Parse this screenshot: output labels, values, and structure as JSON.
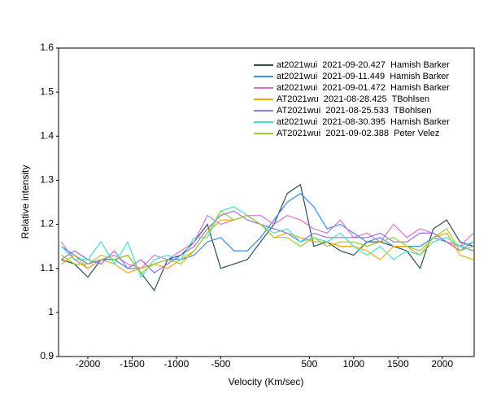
{
  "chart_data": {
    "type": "line",
    "x_label": "Velocity (Km/sec)",
    "y_label": "Relative intensity",
    "x": [
      -2300,
      -2150,
      -2000,
      -1850,
      -1700,
      -1550,
      -1400,
      -1250,
      -1100,
      -950,
      -800,
      -650,
      -500,
      -350,
      -200,
      -50,
      100,
      250,
      400,
      550,
      700,
      850,
      1000,
      1150,
      1300,
      1450,
      1600,
      1750,
      1900,
      2050,
      2200,
      2350
    ],
    "series": [
      {
        "name": "at2021wui  2021-09-20.427  Hamish Barker",
        "color": "#2f4f4f",
        "values": [
          1.12,
          1.11,
          1.08,
          1.12,
          1.12,
          1.13,
          1.09,
          1.05,
          1.12,
          1.13,
          1.16,
          1.2,
          1.1,
          1.11,
          1.12,
          1.16,
          1.2,
          1.27,
          1.29,
          1.15,
          1.16,
          1.14,
          1.13,
          1.16,
          1.16,
          1.15,
          1.14,
          1.1,
          1.19,
          1.21,
          1.16,
          1.15
        ]
      },
      {
        "name": "at2021wui  2021-09-11.449  Hamish Barker",
        "color": "#3a8ee6",
        "values": [
          1.15,
          1.13,
          1.11,
          1.12,
          1.12,
          1.1,
          1.1,
          1.11,
          1.12,
          1.12,
          1.13,
          1.16,
          1.17,
          1.14,
          1.14,
          1.17,
          1.21,
          1.25,
          1.27,
          1.24,
          1.19,
          1.2,
          1.18,
          1.16,
          1.17,
          1.15,
          1.15,
          1.15,
          1.17,
          1.16,
          1.15,
          1.14
        ]
      },
      {
        "name": "at2021wui  2021-09-01.472  Hamish Barker",
        "color": "#da70d6",
        "values": [
          1.16,
          1.12,
          1.1,
          1.12,
          1.13,
          1.11,
          1.1,
          1.13,
          1.12,
          1.14,
          1.16,
          1.22,
          1.2,
          1.21,
          1.22,
          1.22,
          1.2,
          1.22,
          1.21,
          1.19,
          1.18,
          1.21,
          1.17,
          1.18,
          1.16,
          1.2,
          1.17,
          1.19,
          1.18,
          1.16,
          1.15,
          1.18
        ]
      },
      {
        "name": "AT2021wu  2021-08-28.425  TBohlsen",
        "color": "#ffa500",
        "values": [
          1.11,
          1.13,
          1.1,
          1.12,
          1.11,
          1.09,
          1.1,
          1.11,
          1.1,
          1.12,
          1.14,
          1.18,
          1.21,
          1.21,
          1.22,
          1.2,
          1.17,
          1.18,
          1.17,
          1.16,
          1.16,
          1.15,
          1.15,
          1.14,
          1.12,
          1.15,
          1.15,
          1.13,
          1.17,
          1.18,
          1.13,
          1.12
        ]
      },
      {
        "name": "AT2021wui  2021-08-25.533  TBohlsen",
        "color": "#9370db",
        "values": [
          1.12,
          1.14,
          1.12,
          1.11,
          1.14,
          1.1,
          1.12,
          1.09,
          1.11,
          1.13,
          1.15,
          1.19,
          1.22,
          1.23,
          1.21,
          1.2,
          1.19,
          1.18,
          1.16,
          1.18,
          1.17,
          1.17,
          1.17,
          1.17,
          1.18,
          1.16,
          1.16,
          1.18,
          1.18,
          1.16,
          1.14,
          1.16
        ]
      },
      {
        "name": "at2021wui  2021-08-30.395  Hamish Barker",
        "color": "#40e0d0",
        "values": [
          1.15,
          1.12,
          1.12,
          1.16,
          1.11,
          1.16,
          1.08,
          1.12,
          1.13,
          1.12,
          1.17,
          1.17,
          1.23,
          1.24,
          1.22,
          1.2,
          1.18,
          1.19,
          1.16,
          1.17,
          1.16,
          1.18,
          1.15,
          1.13,
          1.15,
          1.12,
          1.14,
          1.13,
          1.16,
          1.17,
          1.15,
          1.16
        ]
      },
      {
        "name": "AT2021wui  2021-09-02.388  Peter Velez",
        "color": "#9acd32",
        "values": [
          1.13,
          1.11,
          1.11,
          1.13,
          1.12,
          1.13,
          1.09,
          1.11,
          1.12,
          1.11,
          1.14,
          1.18,
          1.23,
          1.21,
          1.22,
          1.2,
          1.17,
          1.17,
          1.15,
          1.17,
          1.15,
          1.16,
          1.16,
          1.15,
          1.16,
          1.17,
          1.15,
          1.14,
          1.17,
          1.19,
          1.14,
          1.15
        ]
      }
    ],
    "xlim": [
      -2330,
      2360
    ],
    "xticks": [
      -2000,
      -1500,
      -1000,
      -500,
      500,
      1000,
      1500,
      2000
    ],
    "ylim": [
      0.9,
      1.6
    ],
    "yticks": [
      0.9,
      1,
      1.1,
      1.2,
      1.3,
      1.4,
      1.5,
      1.6
    ],
    "grid": false,
    "legend": "upper-right"
  }
}
